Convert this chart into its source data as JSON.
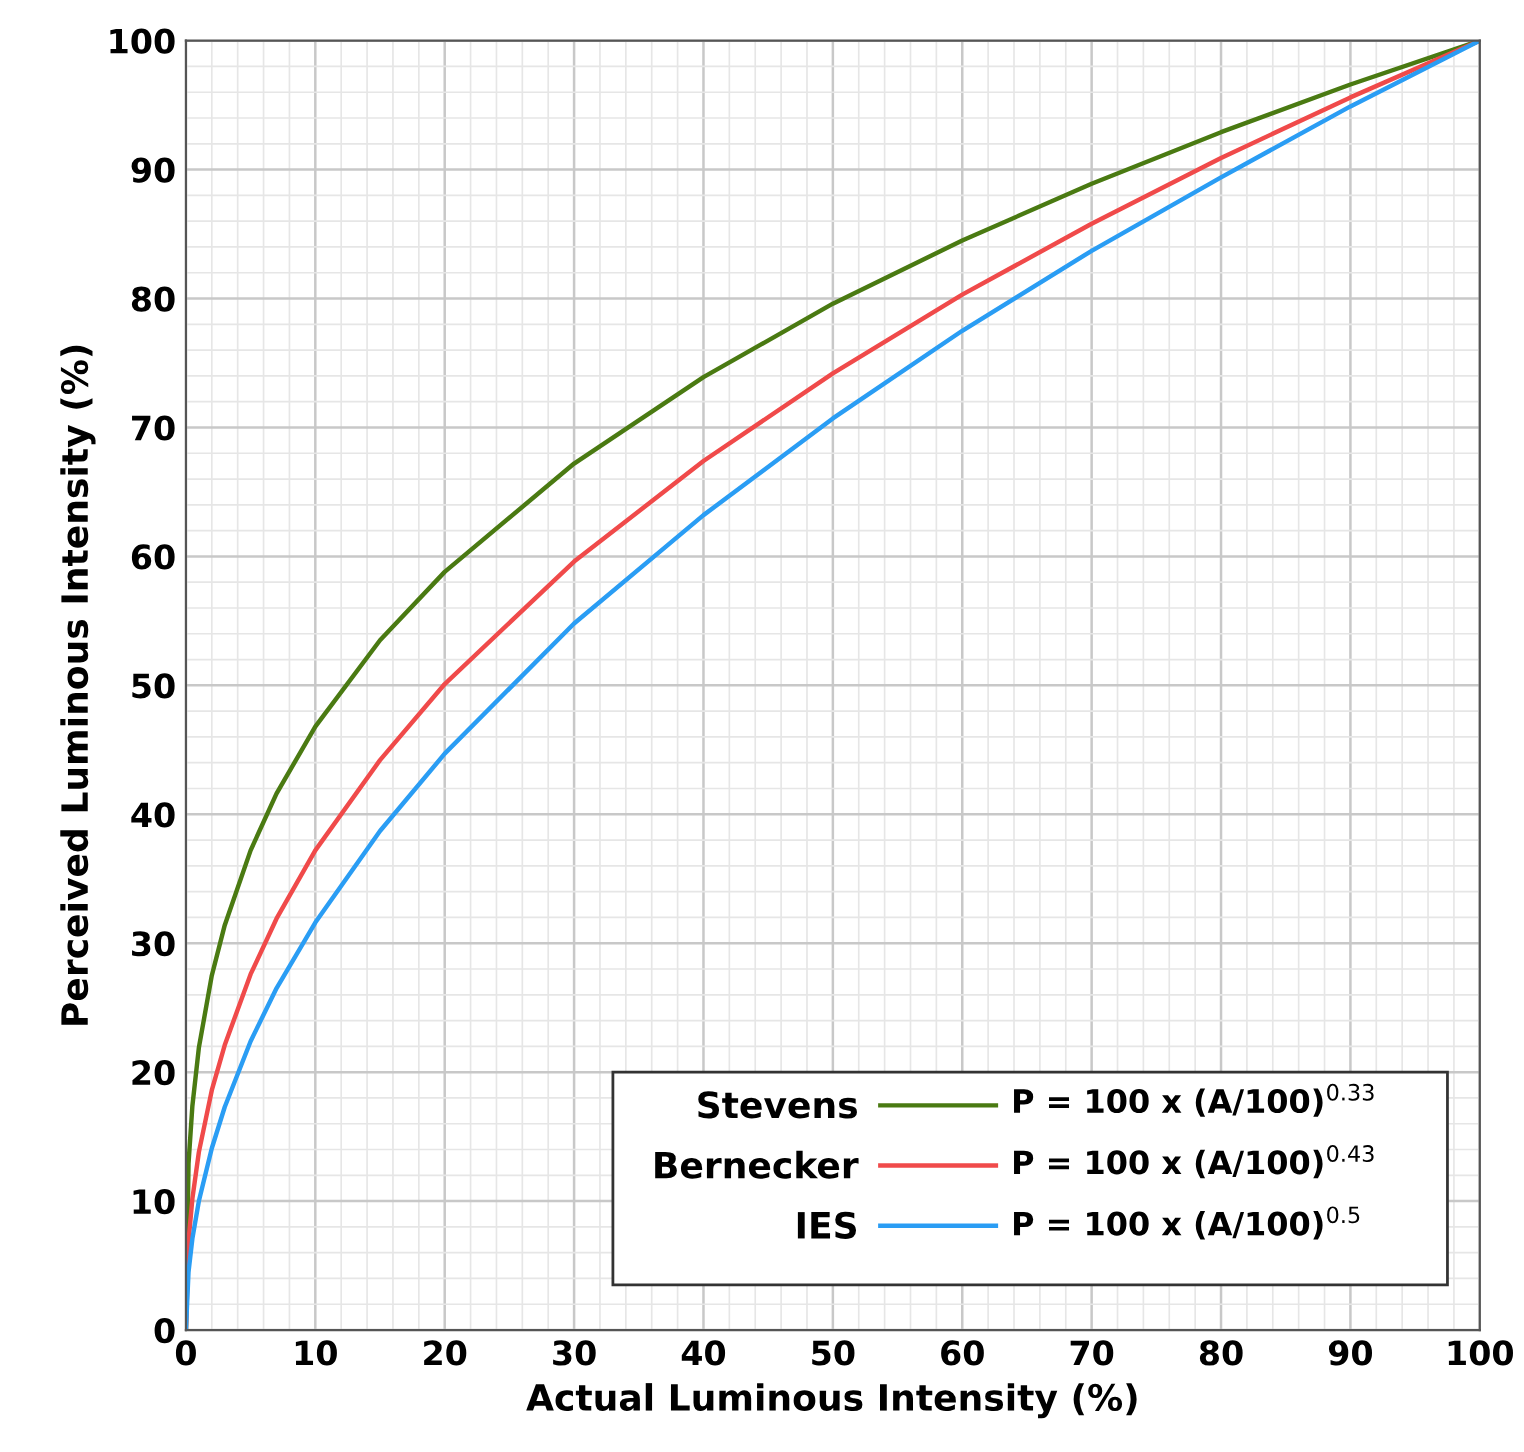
{
  "chart_data": {
    "type": "line",
    "xlabel": "Actual Luminous Intensity (%)",
    "ylabel": "Perceived Luminous Intensity (%)",
    "x": [
      0,
      0.2,
      0.5,
      1,
      2,
      3,
      5,
      7,
      10,
      15,
      20,
      30,
      40,
      50,
      60,
      70,
      80,
      90,
      100
    ],
    "series": [
      {
        "name": "Stevens",
        "color": "#4a7a12",
        "values": [
          0,
          12.9,
          17.4,
          21.9,
          27.5,
          31.4,
          37.2,
          41.6,
          46.8,
          53.5,
          58.8,
          67.2,
          73.9,
          79.6,
          84.5,
          88.9,
          92.9,
          96.6,
          100
        ]
      },
      {
        "name": "Bernecker",
        "color": "#f04a4a",
        "values": [
          0,
          6.9,
          10.2,
          13.8,
          18.6,
          22.1,
          27.6,
          31.9,
          37.2,
          44.2,
          50.1,
          59.6,
          67.4,
          74.2,
          80.3,
          85.8,
          90.9,
          95.6,
          100
        ]
      },
      {
        "name": "IES",
        "color": "#2a9df4",
        "values": [
          0,
          4.5,
          7.1,
          10,
          14.1,
          17.3,
          22.4,
          26.5,
          31.6,
          38.7,
          44.7,
          54.8,
          63.2,
          70.7,
          77.5,
          83.7,
          89.4,
          94.9,
          100
        ]
      }
    ],
    "annotations": [
      "P = 100 x (A/100)$^{0.33}$",
      "P = 100 x (A/100)$^{0.43}$",
      "P = 100 x (A/100)$^{0.5}$"
    ],
    "xlim": [
      0,
      100
    ],
    "ylim": [
      0,
      100
    ],
    "xticks": [
      0,
      10,
      20,
      30,
      40,
      50,
      60,
      70,
      80,
      90,
      100
    ],
    "yticks": [
      0,
      10,
      20,
      30,
      40,
      50,
      60,
      70,
      80,
      90,
      100
    ],
    "grid": true,
    "legend": "bottom right",
    "line_style": "solid",
    "marker": "none"
  }
}
